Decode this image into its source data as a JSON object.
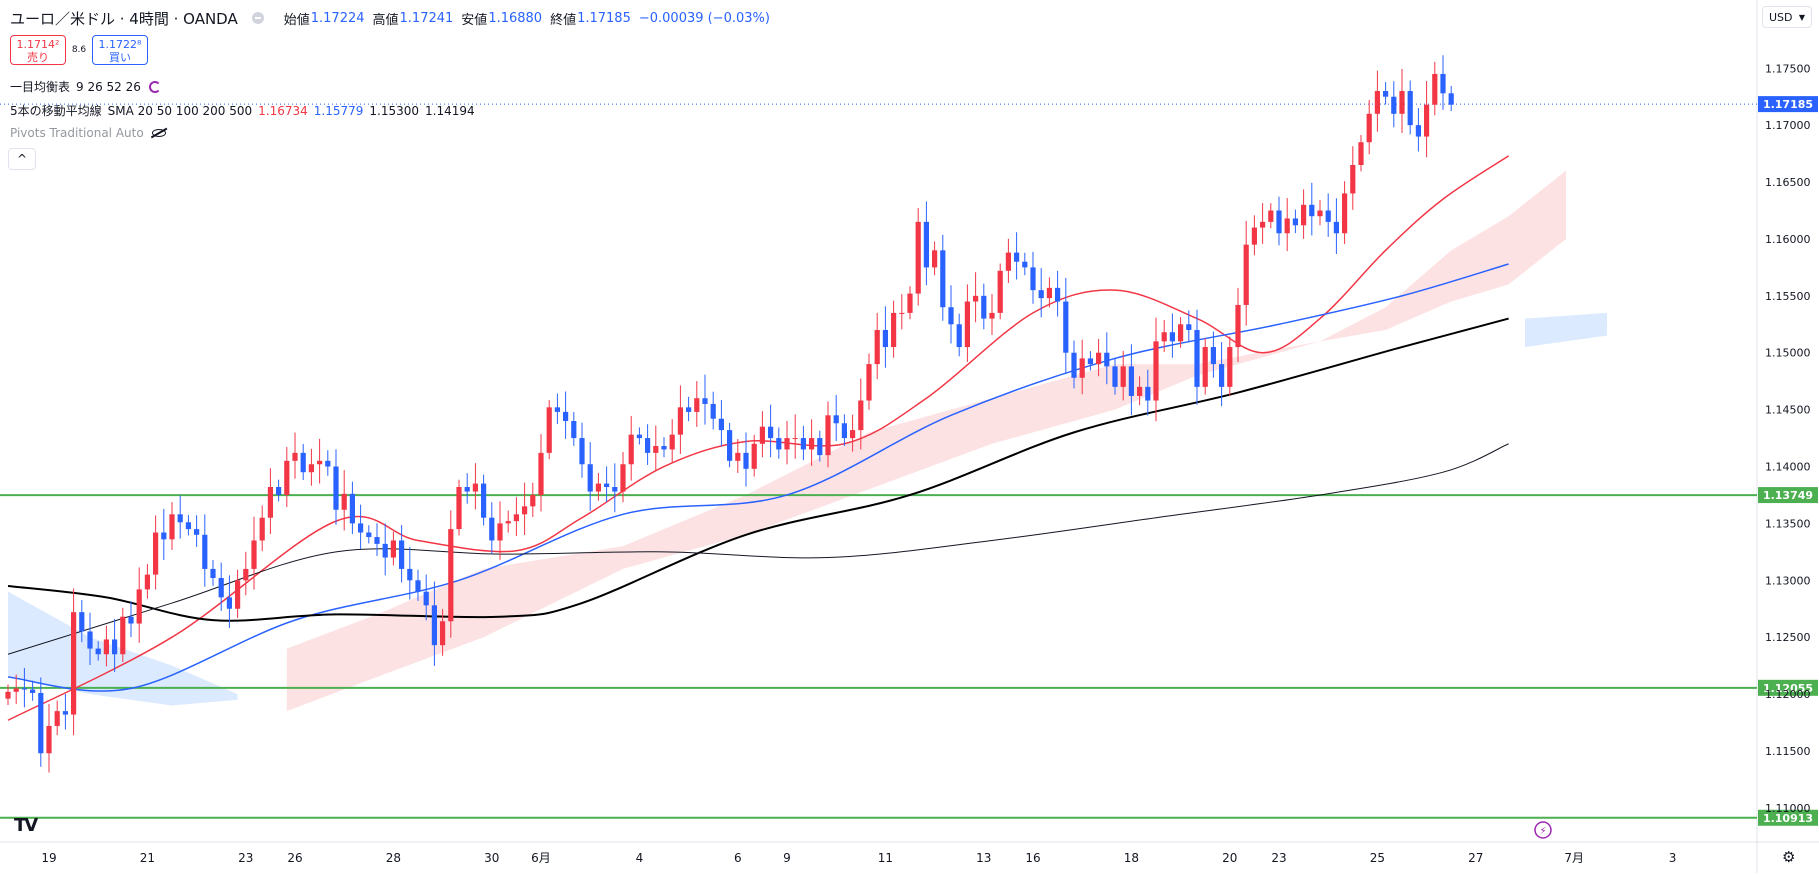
{
  "header": {
    "symbol": "ユーロ／米ドル · 4時間 · OANDA",
    "open_label": "始値",
    "open_value": "1.17224",
    "high_label": "高値",
    "high_value": "1.17241",
    "low_label": "安値",
    "low_value": "1.16880",
    "close_label": "終値",
    "close_value": "1.17185",
    "change": "−0.00039 (−0.03%)",
    "currency": "USD"
  },
  "trade": {
    "sell_price": "1.1714²",
    "sell_label": "売り",
    "spread": "8.6",
    "buy_price": "1.1722⁸",
    "buy_label": "買い"
  },
  "indicators": {
    "ichimoku": {
      "label": "一目均衡表",
      "params": "9 26 52 26"
    },
    "sma": {
      "label": "5本の移動平均線",
      "params": "SMA 20 50 100 200 500",
      "values": [
        "1.16734",
        "1.15779",
        "1.15300",
        "1.14194"
      ]
    },
    "pivots": {
      "label": "Pivots Traditional Auto"
    }
  },
  "colors": {
    "up": "#f23645",
    "down": "#2962ff",
    "sma20": "#f23645",
    "sma50": "#2962ff",
    "sma100": "#000000",
    "sma200": "#000000",
    "hline": "#4caf50",
    "kumo_bull": "#fde2e4",
    "kumo_bear": "#dbeafe",
    "price_label": "#2962ff"
  },
  "chart_data": {
    "type": "candlestick",
    "ylim": [
      1.107,
      1.181
    ],
    "y_ticks": [
      {
        "label": "1.17500",
        "v": 1.175
      },
      {
        "label": "1.17000",
        "v": 1.17
      },
      {
        "label": "1.16500",
        "v": 1.165
      },
      {
        "label": "1.16000",
        "v": 1.16
      },
      {
        "label": "1.15500",
        "v": 1.155
      },
      {
        "label": "1.15000",
        "v": 1.15
      },
      {
        "label": "1.14500",
        "v": 1.145
      },
      {
        "label": "1.14000",
        "v": 1.14
      },
      {
        "label": "1.13500",
        "v": 1.135
      },
      {
        "label": "1.13000",
        "v": 1.13
      },
      {
        "label": "1.12500",
        "v": 1.125
      },
      {
        "label": "1.12000",
        "v": 1.12
      },
      {
        "label": "1.11500",
        "v": 1.115
      },
      {
        "label": "1.11000",
        "v": 1.11
      }
    ],
    "x_ticks": [
      {
        "label": "19",
        "bar": 5
      },
      {
        "label": "21",
        "bar": 17
      },
      {
        "label": "23",
        "bar": 29
      },
      {
        "label": "26",
        "bar": 35
      },
      {
        "label": "28",
        "bar": 47
      },
      {
        "label": "30",
        "bar": 59
      },
      {
        "label": "6月",
        "bar": 65
      },
      {
        "label": "4",
        "bar": 77
      },
      {
        "label": "6",
        "bar": 89
      },
      {
        "label": "9",
        "bar": 95
      },
      {
        "label": "11",
        "bar": 107
      },
      {
        "label": "13",
        "bar": 119
      },
      {
        "label": "16",
        "bar": 125
      },
      {
        "label": "18",
        "bar": 137
      },
      {
        "label": "20",
        "bar": 149
      },
      {
        "label": "23",
        "bar": 155
      },
      {
        "label": "25",
        "bar": 167
      },
      {
        "label": "27",
        "bar": 179
      },
      {
        "label": "7月",
        "bar": 191
      },
      {
        "label": "3",
        "bar": 203
      }
    ],
    "horizontal_lines": [
      {
        "value": 1.13749,
        "label": "1.13749"
      },
      {
        "value": 1.12055,
        "label": "1.12055"
      },
      {
        "value": 1.10913,
        "label": "1.10913"
      }
    ],
    "last_price": {
      "value": 1.17185,
      "label": "1.17185"
    },
    "closes": [
      1.1202,
      1.1205,
      1.1204,
      1.1201,
      1.1148,
      1.1172,
      1.1185,
      1.1182,
      1.1272,
      1.1255,
      1.124,
      1.1235,
      1.1248,
      1.1235,
      1.1268,
      1.1262,
      1.1292,
      1.1305,
      1.1342,
      1.1336,
      1.1358,
      1.1351,
      1.1345,
      1.134,
      1.131,
      1.1302,
      1.1285,
      1.1275,
      1.13,
      1.131,
      1.1335,
      1.1355,
      1.1382,
      1.1375,
      1.1405,
      1.1412,
      1.1395,
      1.1402,
      1.1405,
      1.14,
      1.1362,
      1.1376,
      1.135,
      1.1342,
      1.1338,
      1.1332,
      1.132,
      1.1335,
      1.131,
      1.13,
      1.129,
      1.1278,
      1.1243,
      1.1264,
      1.1345,
      1.1382,
      1.1378,
      1.1385,
      1.1355,
      1.1335,
      1.135,
      1.1352,
      1.1358,
      1.1365,
      1.1375,
      1.1412,
      1.1452,
      1.1448,
      1.144,
      1.1425,
      1.1402,
      1.1378,
      1.1385,
      1.1382,
      1.1378,
      1.1402,
      1.1428,
      1.1425,
      1.1412,
      1.1418,
      1.1415,
      1.1428,
      1.1452,
      1.1448,
      1.146,
      1.1455,
      1.1442,
      1.1432,
      1.1405,
      1.1412,
      1.1398,
      1.142,
      1.1435,
      1.1425,
      1.1415,
      1.1425,
      1.1425,
      1.1415,
      1.1425,
      1.141,
      1.1445,
      1.1438,
      1.1425,
      1.1432,
      1.1458,
      1.149,
      1.152,
      1.1505,
      1.1535,
      1.1535,
      1.1552,
      1.1615,
      1.1575,
      1.159,
      1.154,
      1.1525,
      1.1505,
      1.1545,
      1.155,
      1.153,
      1.1535,
      1.1572,
      1.1588,
      1.158,
      1.1575,
      1.1555,
      1.1548,
      1.1557,
      1.1545,
      1.15,
      1.1478,
      1.1495,
      1.149,
      1.15,
      1.1488,
      1.147,
      1.1488,
      1.1462,
      1.147,
      1.1458,
      1.151,
      1.1518,
      1.151,
      1.1525,
      1.152,
      1.147,
      1.1505,
      1.149,
      1.147,
      1.1505,
      1.1542,
      1.1595,
      1.161,
      1.1615,
      1.1625,
      1.1605,
      1.1618,
      1.1612,
      1.163,
      1.162,
      1.1625,
      1.1615,
      1.1605,
      1.164,
      1.1665,
      1.1685,
      1.171,
      1.173,
      1.1725,
      1.171,
      1.173,
      1.17,
      1.169,
      1.1718,
      1.1745,
      1.1728,
      1.1718
    ],
    "sma_lines": [
      {
        "name": "SMA 20",
        "color": "#f23645",
        "width": 1.5,
        "pts": [
          [
            0,
            1.1177
          ],
          [
            20,
            1.125
          ],
          [
            40,
            1.1352
          ],
          [
            50,
            1.1335
          ],
          [
            62,
            1.1326
          ],
          [
            70,
            1.1355
          ],
          [
            80,
            1.14
          ],
          [
            90,
            1.1422
          ],
          [
            102,
            1.142
          ],
          [
            112,
            1.146
          ],
          [
            125,
            1.1535
          ],
          [
            135,
            1.1555
          ],
          [
            145,
            1.153
          ],
          [
            153,
            1.15
          ],
          [
            160,
            1.153
          ],
          [
            168,
            1.159
          ],
          [
            175,
            1.1635
          ],
          [
            183,
            1.1673
          ]
        ]
      },
      {
        "name": "SMA 50",
        "color": "#2962ff",
        "width": 1.5,
        "pts": [
          [
            0,
            1.1215
          ],
          [
            15,
            1.1205
          ],
          [
            35,
            1.1265
          ],
          [
            55,
            1.13
          ],
          [
            75,
            1.1358
          ],
          [
            95,
            1.1375
          ],
          [
            115,
            1.1445
          ],
          [
            135,
            1.1495
          ],
          [
            155,
            1.1525
          ],
          [
            170,
            1.155
          ],
          [
            183,
            1.1578
          ]
        ]
      },
      {
        "name": "SMA 100",
        "color": "#000000",
        "width": 2.0,
        "pts": [
          [
            0,
            1.1295
          ],
          [
            12,
            1.1285
          ],
          [
            25,
            1.1265
          ],
          [
            40,
            1.127
          ],
          [
            60,
            1.1268
          ],
          [
            70,
            1.128
          ],
          [
            90,
            1.134
          ],
          [
            110,
            1.1375
          ],
          [
            130,
            1.143
          ],
          [
            150,
            1.1465
          ],
          [
            170,
            1.1505
          ],
          [
            183,
            1.153
          ]
        ]
      },
      {
        "name": "SMA 200",
        "color": "#131722",
        "width": 1.0,
        "pts": [
          [
            0,
            1.1235
          ],
          [
            20,
            1.128
          ],
          [
            40,
            1.1325
          ],
          [
            60,
            1.1323
          ],
          [
            80,
            1.1325
          ],
          [
            100,
            1.132
          ],
          [
            120,
            1.1335
          ],
          [
            140,
            1.1355
          ],
          [
            160,
            1.1375
          ],
          [
            175,
            1.1395
          ],
          [
            183,
            1.142
          ]
        ]
      }
    ],
    "kumo": [
      {
        "kind": "bear",
        "top": [
          [
            0,
            1.129
          ],
          [
            10,
            1.125
          ],
          [
            20,
            1.1225
          ],
          [
            28,
            1.12
          ]
        ],
        "bot": [
          [
            0,
            1.1215
          ],
          [
            10,
            1.12
          ],
          [
            20,
            1.119
          ],
          [
            28,
            1.1195
          ]
        ]
      },
      {
        "kind": "bull",
        "top": [
          [
            34,
            1.124
          ],
          [
            45,
            1.127
          ],
          [
            58,
            1.131
          ],
          [
            75,
            1.133
          ],
          [
            90,
            1.1375
          ],
          [
            105,
            1.143
          ],
          [
            120,
            1.146
          ],
          [
            135,
            1.149
          ],
          [
            145,
            1.149
          ],
          [
            160,
            1.151
          ],
          [
            168,
            1.154
          ],
          [
            176,
            1.159
          ],
          [
            183,
            1.162
          ],
          [
            190,
            1.166
          ]
        ],
        "bot": [
          [
            34,
            1.1185
          ],
          [
            45,
            1.1215
          ],
          [
            58,
            1.125
          ],
          [
            75,
            1.131
          ],
          [
            90,
            1.134
          ],
          [
            105,
            1.138
          ],
          [
            120,
            1.142
          ],
          [
            135,
            1.145
          ],
          [
            145,
            1.148
          ],
          [
            160,
            1.151
          ],
          [
            168,
            1.152
          ],
          [
            176,
            1.1545
          ],
          [
            183,
            1.156
          ],
          [
            190,
            1.16
          ]
        ]
      },
      {
        "kind": "bear",
        "top": [
          [
            185,
            1.153
          ],
          [
            195,
            1.1535
          ]
        ],
        "bot": [
          [
            185,
            1.1505
          ],
          [
            195,
            1.1515
          ]
        ]
      }
    ]
  }
}
